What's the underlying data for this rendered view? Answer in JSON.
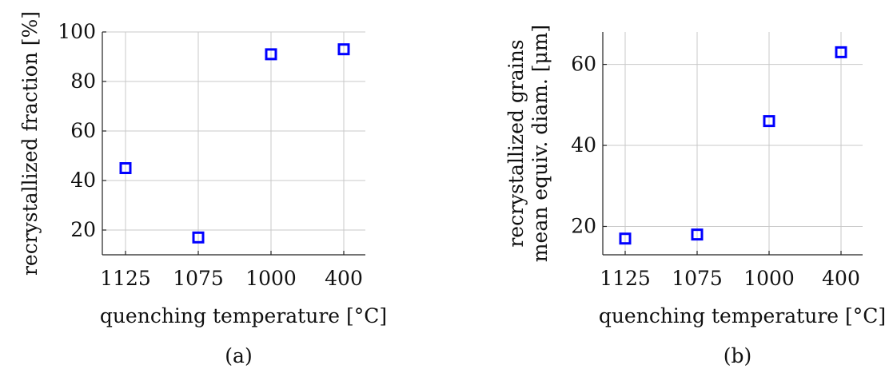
{
  "colors": {
    "marker": "#0000ff",
    "grid": "#c8c8c8",
    "axis": "#222222"
  },
  "chart_data": [
    {
      "type": "scatter",
      "panel_label": "(a)",
      "categories": [
        "1125",
        "1075",
        "1000",
        "400"
      ],
      "values": [
        45,
        17,
        91,
        93
      ],
      "marker": "square",
      "xlabel": "quenching temperature [°C]",
      "ylabel_lines": [
        "recrystallized fraction [%]"
      ],
      "ylim": [
        10,
        100
      ],
      "yticks": [
        20,
        40,
        60,
        80,
        100
      ],
      "grid": true
    },
    {
      "type": "scatter",
      "panel_label": "(b)",
      "categories": [
        "1125",
        "1075",
        "1000",
        "400"
      ],
      "values": [
        17,
        18,
        46,
        63
      ],
      "marker": "square",
      "xlabel": "quenching temperature [°C]",
      "ylabel_lines": [
        "recrystallized grains",
        "mean equiv. diam. [μm]"
      ],
      "ylim": [
        13,
        68
      ],
      "yticks": [
        20,
        40,
        60
      ],
      "grid": true
    }
  ]
}
